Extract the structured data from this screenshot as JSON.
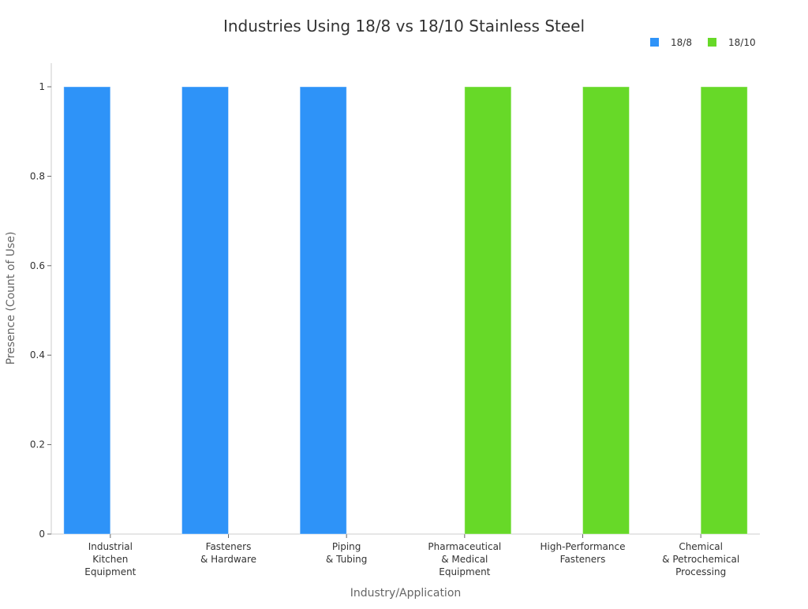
{
  "chart_data": {
    "type": "bar",
    "title": "Industries Using 18/8 vs 18/10 Stainless Steel",
    "xlabel": "Industry/Application",
    "ylabel": "Presence (Count of Use)",
    "ylim": [
      0,
      1.05
    ],
    "yticks": [
      0,
      0.2,
      0.4,
      0.6,
      0.8,
      1
    ],
    "ytick_labels": [
      "0",
      "0.2",
      "0.4",
      "0.6",
      "0.8",
      "1"
    ],
    "grid": false,
    "legend_position": "top-right",
    "categories": [
      [
        "Industrial",
        "Kitchen",
        "Equipment"
      ],
      [
        "Fasteners",
        "& Hardware"
      ],
      [
        "Piping",
        "& Tubing"
      ],
      [
        "Pharmaceutical",
        "& Medical",
        "Equipment"
      ],
      [
        "High-Performance",
        "Fasteners"
      ],
      [
        "Chemical",
        "& Petrochemical",
        "Processing"
      ]
    ],
    "series": [
      {
        "name": "18/8",
        "color": "#2e93f8",
        "values": [
          1,
          1,
          1,
          0,
          0,
          0
        ]
      },
      {
        "name": "18/10",
        "color": "#67d928",
        "values": [
          0,
          0,
          0,
          1,
          1,
          1
        ]
      }
    ]
  }
}
